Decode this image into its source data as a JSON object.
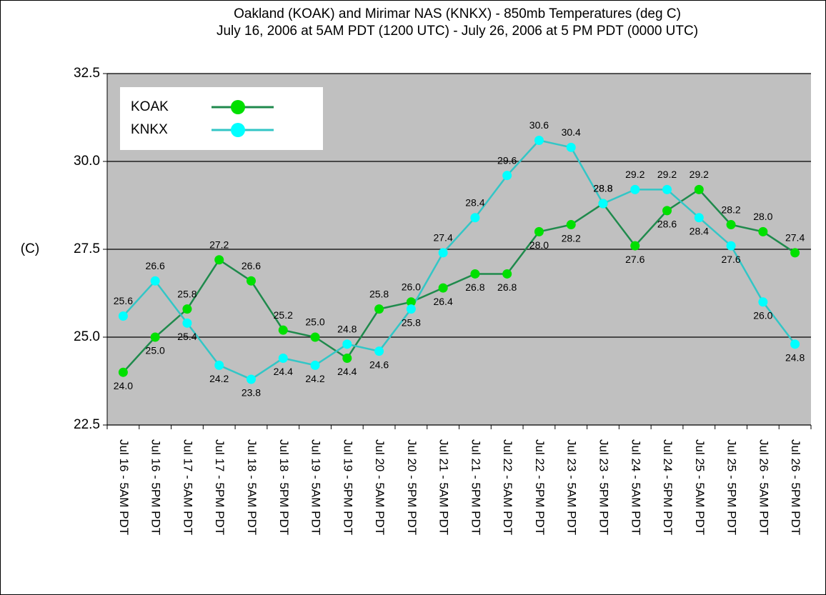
{
  "chart_data": {
    "type": "line",
    "title": "Oakland (KOAK) and Mirimar NAS (KNKX) - 850mb Temperatures (deg C)",
    "subtitle": "July 16, 2006 at 5AM PDT (1200 UTC) - July 26, 2006 at 5 PM PDT (0000 UTC)",
    "y_label": "(C)",
    "categories": [
      "Jul 16 - 5AM PDT",
      "Jul 16 - 5PM PDT",
      "Jul 17 - 5AM PDT",
      "Jul 17 - 5PM PDT",
      "Jul 18 - 5AM PDT",
      "Jul 18 - 5PM PDT",
      "Jul 19 - 5AM PDT",
      "Jul 19 - 5PM PDT",
      "Jul 20 - 5AM PDT",
      "Jul 20 - 5PM PDT",
      "Jul 21 - 5AM PDT",
      "Jul 21 - 5PM PDT",
      "Jul 22 - 5AM PDT",
      "Jul 22 - 5PM PDT",
      "Jul 23 - 5AM PDT",
      "Jul 23 - 5PM PDT",
      "Jul 24 - 5AM PDT",
      "Jul 24 - 5PM PDT",
      "Jul 25 - 5AM PDT",
      "Jul 25 - 5PM PDT",
      "Jul 26 - 5AM PDT",
      "Jul 26 - 5PM PDT"
    ],
    "series": [
      {
        "name": "KOAK",
        "color": "#1f8a4c",
        "marker_color": "#00e000",
        "values": [
          24.0,
          25.0,
          25.8,
          27.2,
          26.6,
          25.2,
          25.0,
          24.4,
          25.8,
          26.0,
          26.4,
          26.8,
          26.8,
          28.0,
          28.2,
          28.8,
          27.6,
          28.6,
          29.2,
          28.2,
          28.0,
          27.4
        ],
        "value_labels": [
          "24.0",
          "25.0",
          "25.8",
          "27.2",
          "26.6",
          "25.2",
          "25.0",
          "24.4",
          "25.8",
          "26.0",
          "26.4",
          "26.8",
          "26.8",
          "28.0",
          "28.2",
          "28.8",
          "27.6",
          "28.6",
          "29.2",
          "28.2",
          "28.0",
          "27.4"
        ]
      },
      {
        "name": "KNKX",
        "color": "#33c6c6",
        "marker_color": "#00ffff",
        "values": [
          25.6,
          26.6,
          25.4,
          24.2,
          23.8,
          24.4,
          24.2,
          24.8,
          24.6,
          25.8,
          27.4,
          28.4,
          29.6,
          30.6,
          30.4,
          28.8,
          29.2,
          29.2,
          28.4,
          27.6,
          26.0,
          24.8
        ],
        "value_labels": [
          "25.6",
          "26.6",
          "25.4",
          "24.2",
          "23.8",
          "24.4",
          "24.2",
          "24.8",
          "24.6",
          "25.8",
          "27.4",
          "28.4",
          "29.6",
          "30.6",
          "30.4",
          "28.8",
          "29.2",
          "29.2",
          "28.4",
          "27.6",
          "26.0",
          "24.8"
        ]
      }
    ],
    "ylim": [
      22.5,
      32.5
    ],
    "yticks": [
      22.5,
      {
        "value": 25,
        "label": "25.0"
      },
      27.5,
      {
        "value": 30,
        "label": "30.0"
      },
      32.5
    ],
    "grid": true,
    "legend": "upper left",
    "plot_background": "#c0c0c0"
  }
}
